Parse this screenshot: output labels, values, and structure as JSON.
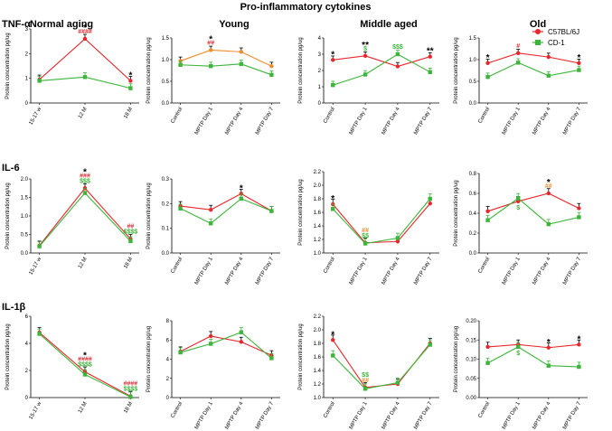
{
  "figure_title": "Pro-inflammatory cytokines",
  "column_titles": [
    "Normal aging",
    "Young",
    "Middle aged",
    "Old"
  ],
  "row_titles": [
    "TNF-α",
    "IL-6",
    "IL-1β"
  ],
  "legend": [
    {
      "label": "C57BL/6J",
      "color": "#e8262b"
    },
    {
      "label": "CD-1",
      "color": "#3cb53a"
    }
  ],
  "colors": {
    "c57": "#e8262b",
    "cd1": "#3cb53a",
    "young_c57": "#f08c2c",
    "star": "#000000",
    "hash": "#e8262b",
    "dollar": "#3cb53a",
    "hash_orange": "#f08c2c"
  },
  "chart_data": [
    {
      "id": "tnf-normal",
      "type": "line",
      "ylabel": "Protein concentration pg/ug",
      "categories": [
        "15-17 w",
        "12 M",
        "18 M"
      ],
      "ylim": [
        0,
        3
      ],
      "yticks": [
        "0",
        "1",
        "2",
        "3"
      ],
      "series": [
        {
          "name": "C57BL/6J",
          "values": [
            0.95,
            2.6,
            0.9
          ]
        },
        {
          "name": "CD-1",
          "values": [
            0.9,
            1.05,
            0.6
          ]
        }
      ],
      "annotations": [
        {
          "i": 1,
          "lines": [
            {
              "t": "*",
              "c": "star"
            },
            {
              "t": "####",
              "c": "hash"
            }
          ]
        },
        {
          "i": 2,
          "lines": [
            {
              "t": "*",
              "c": "star"
            }
          ]
        }
      ]
    },
    {
      "id": "tnf-young",
      "type": "line",
      "ylabel": "Protein concentration pg/ug",
      "categories": [
        "Control",
        "MPTP Day 1",
        "MPTP Day 4",
        "MPTP Day 7"
      ],
      "ylim": [
        0,
        1.5
      ],
      "yticks": [
        "0.0",
        "0.5",
        "1.0",
        "1.5"
      ],
      "series": [
        {
          "name": "C57BL/6J",
          "values": [
            0.97,
            1.22,
            1.18,
            0.85
          ],
          "color": "young_c57"
        },
        {
          "name": "CD-1",
          "values": [
            0.88,
            0.85,
            0.9,
            0.65
          ]
        }
      ],
      "annotations": [
        {
          "i": 1,
          "lines": [
            {
              "t": "*",
              "c": "star"
            },
            {
              "t": "##",
              "c": "hash"
            }
          ]
        }
      ]
    },
    {
      "id": "tnf-middle",
      "type": "line",
      "ylabel": "Protein concentration pg/ug",
      "categories": [
        "Control",
        "MPTP Day 1",
        "MPTP Day 4",
        "MPTP Day 7"
      ],
      "ylim": [
        0,
        4
      ],
      "yticks": [
        "0",
        "1",
        "2",
        "3",
        "4"
      ],
      "series": [
        {
          "name": "C57BL/6J",
          "values": [
            2.65,
            2.9,
            2.25,
            2.85
          ]
        },
        {
          "name": "CD-1",
          "values": [
            1.1,
            1.75,
            3.0,
            1.9
          ]
        }
      ],
      "annotations": [
        {
          "i": 0,
          "lines": [
            {
              "t": "*",
              "c": "star"
            }
          ]
        },
        {
          "i": 1,
          "lines": [
            {
              "t": "**",
              "c": "star"
            },
            {
              "t": "$",
              "c": "dollar"
            }
          ]
        },
        {
          "i": 2,
          "lines": [
            {
              "t": "$$$",
              "c": "dollar"
            }
          ]
        },
        {
          "i": 3,
          "lines": [
            {
              "t": "**",
              "c": "star"
            }
          ]
        }
      ]
    },
    {
      "id": "tnf-old",
      "type": "line",
      "ylabel": "Protein concentration pg/ug",
      "categories": [
        "Control",
        "MPTP Day 1",
        "MPTP Day 4",
        "MPTP Day 7"
      ],
      "ylim": [
        0,
        1.5
      ],
      "yticks": [
        "0.0",
        "0.5",
        "1.0",
        "1.5"
      ],
      "series": [
        {
          "name": "C57BL/6J",
          "values": [
            0.92,
            1.15,
            1.06,
            0.92
          ]
        },
        {
          "name": "CD-1",
          "values": [
            0.6,
            0.93,
            0.63,
            0.76
          ]
        }
      ],
      "annotations": [
        {
          "i": 0,
          "lines": [
            {
              "t": "*",
              "c": "star"
            }
          ]
        },
        {
          "i": 1,
          "lines": [
            {
              "t": "#",
              "c": "hash"
            }
          ]
        },
        {
          "i": 3,
          "lines": [
            {
              "t": "*",
              "c": "star"
            }
          ]
        }
      ]
    },
    {
      "id": "il6-normal",
      "type": "line",
      "ylabel": "Protein concentration pg/ug",
      "categories": [
        "15-17 w",
        "12 M",
        "18 M"
      ],
      "ylim": [
        0,
        2
      ],
      "yticks": [
        "0.0",
        "0.5",
        "1.0",
        "1.5",
        "2.0"
      ],
      "series": [
        {
          "name": "C57BL/6J",
          "values": [
            0.2,
            1.75,
            0.38
          ]
        },
        {
          "name": "CD-1",
          "values": [
            0.18,
            1.62,
            0.32
          ]
        }
      ],
      "annotations": [
        {
          "i": 1,
          "lines": [
            {
              "t": "*",
              "c": "star"
            },
            {
              "t": "###",
              "c": "hash"
            },
            {
              "t": "$$$",
              "c": "dollar"
            }
          ]
        },
        {
          "i": 2,
          "lines": [
            {
              "t": "##",
              "c": "hash"
            },
            {
              "t": "$$$$",
              "c": "dollar"
            }
          ]
        }
      ]
    },
    {
      "id": "il6-young",
      "type": "line",
      "ylabel": "Protein concentration pg/ug",
      "categories": [
        "Control",
        "MPTP Day 1",
        "MPTP Day 4",
        "MPTP Day 7"
      ],
      "ylim": [
        0,
        0.3
      ],
      "yticks": [
        "0.0",
        "0.1",
        "0.2",
        "0.3"
      ],
      "series": [
        {
          "name": "C57BL/6J",
          "values": [
            0.19,
            0.175,
            0.24,
            0.17
          ]
        },
        {
          "name": "CD-1",
          "values": [
            0.18,
            0.12,
            0.22,
            0.17
          ]
        }
      ],
      "annotations": [
        {
          "i": 2,
          "lines": [
            {
              "t": "*",
              "c": "star"
            }
          ]
        }
      ]
    },
    {
      "id": "il6-middle",
      "type": "line",
      "ylabel": "Protein concentration pg/ug",
      "categories": [
        "Control",
        "MPTP Day 1",
        "MPTP Day 4",
        "MPTP Day 7"
      ],
      "ylim": [
        1.0,
        2.2
      ],
      "yticks": [
        "1.0",
        "1.2",
        "1.4",
        "1.6",
        "1.8",
        "2.0",
        "2.2"
      ],
      "series": [
        {
          "name": "C57BL/6J",
          "values": [
            1.72,
            1.15,
            1.17,
            1.73
          ]
        },
        {
          "name": "CD-1",
          "values": [
            1.65,
            1.14,
            1.22,
            1.8
          ]
        }
      ],
      "annotations": [
        {
          "i": 0,
          "lines": [
            {
              "t": "*",
              "c": "star"
            }
          ]
        },
        {
          "i": 1,
          "lines": [
            {
              "t": "##",
              "c": "hash_orange"
            },
            {
              "t": "$$",
              "c": "dollar"
            }
          ]
        }
      ]
    },
    {
      "id": "il6-old",
      "type": "line",
      "ylabel": "Protein concentration pg/ug",
      "categories": [
        "Control",
        "MPTP Day 1",
        "MPTP Day 4",
        "MPTP Day 7"
      ],
      "ylim": [
        0,
        0.8
      ],
      "yticks": [
        "0.0",
        "0.2",
        "0.4",
        "0.6",
        "0.8"
      ],
      "series": [
        {
          "name": "C57BL/6J",
          "values": [
            0.42,
            0.52,
            0.6,
            0.45
          ]
        },
        {
          "name": "CD-1",
          "values": [
            0.33,
            0.55,
            0.29,
            0.36
          ]
        }
      ],
      "annotations": [
        {
          "i": 1,
          "lines": [
            {
              "t": "$",
              "c": "dollar",
              "below": true
            }
          ]
        },
        {
          "i": 2,
          "lines": [
            {
              "t": "*",
              "c": "star"
            },
            {
              "t": "##",
              "c": "hash_orange"
            }
          ]
        }
      ]
    },
    {
      "id": "il1b-normal",
      "type": "line",
      "ylabel": "Protein concentration pg/ug",
      "categories": [
        "15-17 w",
        "12 M",
        "18 M"
      ],
      "ylim": [
        0,
        6
      ],
      "yticks": [
        "0",
        "2",
        "4",
        "6"
      ],
      "series": [
        {
          "name": "C57BL/6J",
          "values": [
            4.8,
            1.9,
            0.1
          ]
        },
        {
          "name": "CD-1",
          "values": [
            4.7,
            1.7,
            0.05
          ]
        }
      ],
      "annotations": [
        {
          "i": 1,
          "lines": [
            {
              "t": "*",
              "c": "star"
            },
            {
              "t": "####",
              "c": "hash"
            },
            {
              "t": "$$$$",
              "c": "dollar"
            }
          ]
        },
        {
          "i": 2,
          "lines": [
            {
              "t": "####",
              "c": "hash"
            },
            {
              "t": "$$$$",
              "c": "dollar"
            }
          ]
        }
      ]
    },
    {
      "id": "il1b-young",
      "type": "line",
      "ylabel": "Protein concentration pg/ug",
      "categories": [
        "Control",
        "MPTP Day 1",
        "MPTP Day 4",
        "MPTP Day 7"
      ],
      "ylim": [
        0,
        8
      ],
      "yticks": [
        "0",
        "2",
        "4",
        "6",
        "8"
      ],
      "series": [
        {
          "name": "C57BL/6J",
          "values": [
            4.8,
            6.4,
            5.8,
            4.4
          ]
        },
        {
          "name": "CD-1",
          "values": [
            4.7,
            5.6,
            6.8,
            4.1
          ]
        }
      ],
      "annotations": []
    },
    {
      "id": "il1b-middle",
      "type": "line",
      "ylabel": "Protein concentration pg/ug",
      "categories": [
        "Control",
        "MPTP Day 1",
        "MPTP Day 4",
        "MPTP Day 7"
      ],
      "ylim": [
        1.0,
        2.2
      ],
      "yticks": [
        "1.0",
        "1.2",
        "1.4",
        "1.6",
        "1.8",
        "2.0",
        "2.2"
      ],
      "series": [
        {
          "name": "C57BL/6J",
          "values": [
            1.85,
            1.15,
            1.2,
            1.8
          ]
        },
        {
          "name": "CD-1",
          "values": [
            1.62,
            1.13,
            1.22,
            1.78
          ]
        }
      ],
      "annotations": [
        {
          "i": 0,
          "lines": [
            {
              "t": "*",
              "c": "star"
            }
          ]
        },
        {
          "i": 1,
          "lines": [
            {
              "t": "$$",
              "c": "dollar"
            },
            {
              "t": "##",
              "c": "hash_orange"
            }
          ]
        }
      ]
    },
    {
      "id": "il1b-old",
      "type": "line",
      "ylabel": "Protein concentration pg/ug",
      "categories": [
        "Control",
        "MPTP Day 1",
        "MPTP Day 4",
        "MPTP Day 7"
      ],
      "ylim": [
        0,
        0.2
      ],
      "yticks": [
        "0.00",
        "0.05",
        "0.10",
        "0.15",
        "0.20"
      ],
      "series": [
        {
          "name": "C57BL/6J",
          "values": [
            0.132,
            0.138,
            0.13,
            0.138
          ]
        },
        {
          "name": "CD-1",
          "values": [
            0.09,
            0.132,
            0.083,
            0.08
          ]
        }
      ],
      "annotations": [
        {
          "i": 1,
          "lines": [
            {
              "t": "$",
              "c": "dollar",
              "below": true
            }
          ]
        },
        {
          "i": 2,
          "lines": [
            {
              "t": "*",
              "c": "star"
            }
          ]
        },
        {
          "i": 3,
          "lines": [
            {
              "t": "*",
              "c": "star"
            }
          ]
        }
      ]
    }
  ]
}
